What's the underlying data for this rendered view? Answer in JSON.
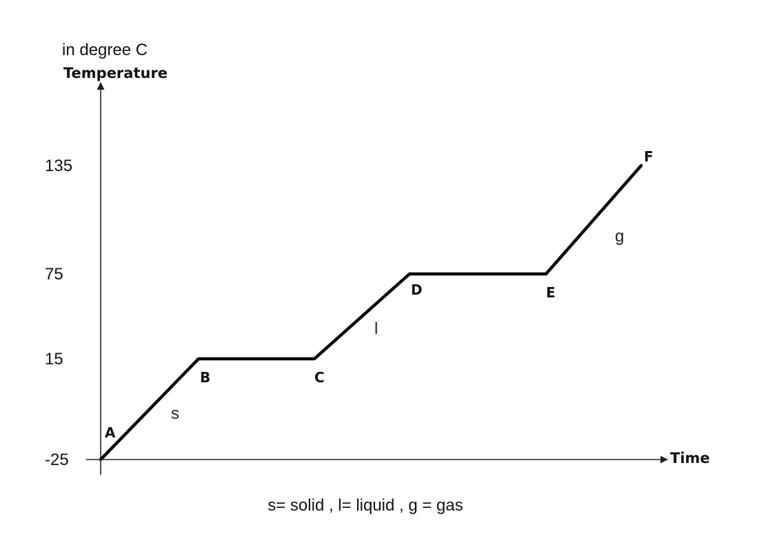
{
  "chart_data": {
    "type": "line",
    "title": "",
    "ylabel": "Temperature",
    "ylabel_unit": "in degree C",
    "xlabel": "Time",
    "y_ticks": [
      -25,
      15,
      75,
      135
    ],
    "y_tick_labels": [
      "-25",
      "15",
      "75",
      "135"
    ],
    "ylim": [
      -25,
      135
    ],
    "x_ticks": [],
    "grid": false,
    "series": [
      {
        "points": [
          {
            "label": "A",
            "y": -25
          },
          {
            "label": "B",
            "y": 15
          },
          {
            "label": "C",
            "y": 15
          },
          {
            "label": "D",
            "y": 75
          },
          {
            "label": "E",
            "y": 75
          },
          {
            "label": "F",
            "y": 135
          }
        ]
      }
    ],
    "phase_labels": [
      "s",
      "l",
      "g"
    ],
    "footnote": "s= solid , l= liquid , g = gas",
    "line_color": "#000000"
  }
}
